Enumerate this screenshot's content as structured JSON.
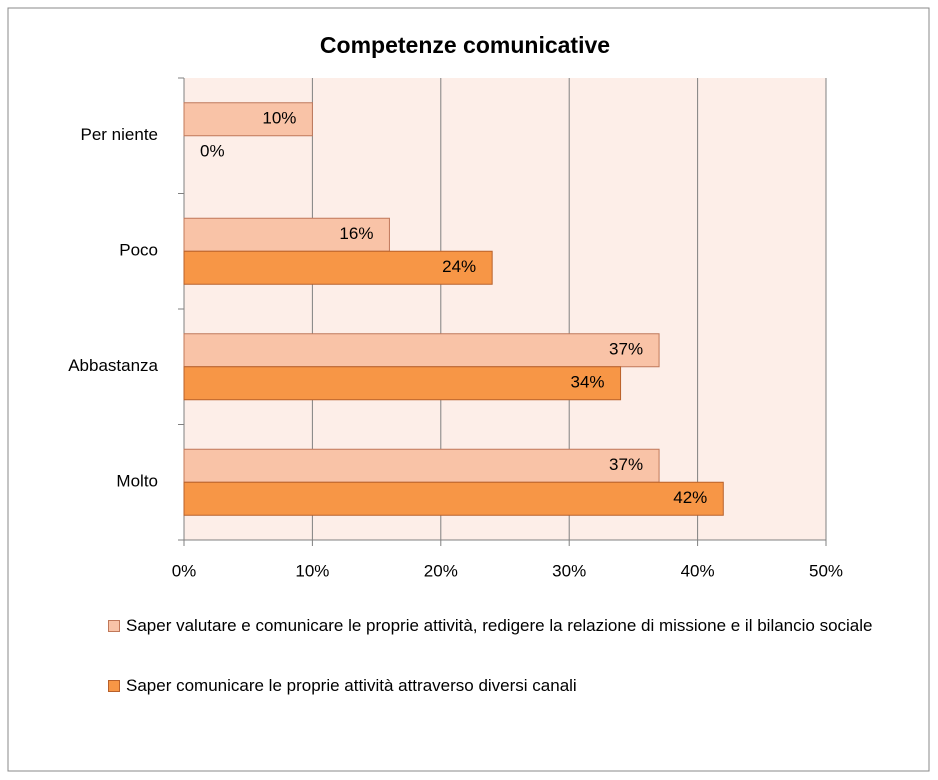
{
  "chart_data": {
    "type": "bar",
    "orientation": "horizontal",
    "title": "Competenze comunicative",
    "categories": [
      "Per niente",
      "Poco",
      "Abbastanza",
      "Molto"
    ],
    "series": [
      {
        "name": "Saper valutare e comunicare le proprie attività, redigere la relazione di missione e il bilancio sociale",
        "color": "#f9c3a7",
        "values": [
          10,
          16,
          37,
          37
        ],
        "value_labels": [
          "10%",
          "16%",
          "37%",
          "37%"
        ]
      },
      {
        "name": "Saper comunicare le proprie attività attraverso diversi canali",
        "color": "#f79646",
        "values": [
          0,
          24,
          34,
          42
        ],
        "value_labels": [
          "0%",
          "24%",
          "34%",
          "42%"
        ]
      }
    ],
    "xlim": [
      0,
      50
    ],
    "xticks": [
      {
        "value": 0,
        "label": "0%"
      },
      {
        "value": 10,
        "label": "10%"
      },
      {
        "value": 20,
        "label": "20%"
      },
      {
        "value": 30,
        "label": "30%"
      },
      {
        "value": 40,
        "label": "40%"
      },
      {
        "value": 50,
        "label": "50%"
      }
    ],
    "grid": true,
    "legend": "bottom"
  }
}
